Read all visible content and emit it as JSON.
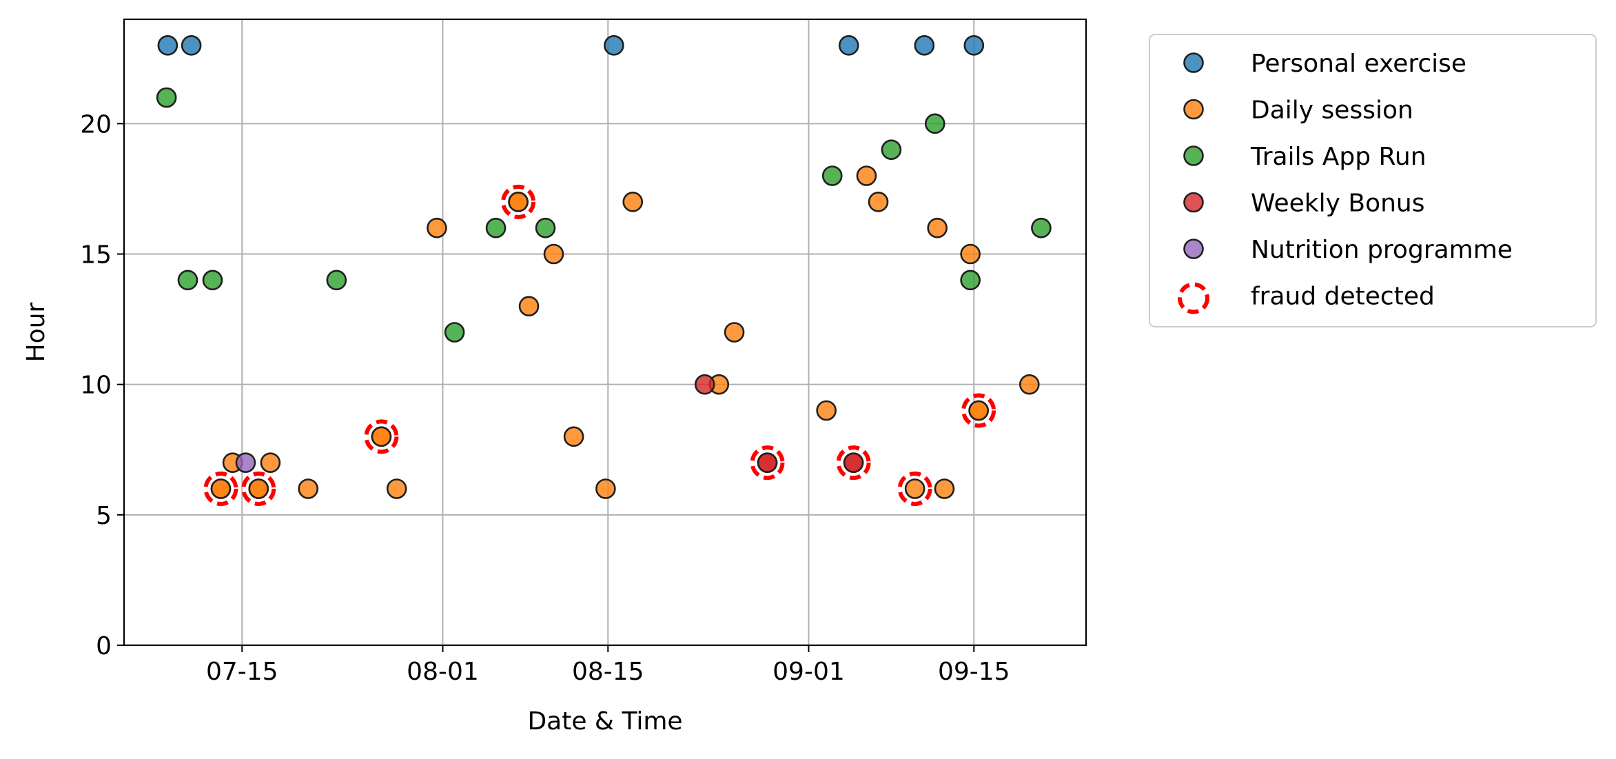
{
  "chart_data": {
    "type": "scatter",
    "title": "",
    "xlabel": "Date & Time",
    "ylabel": "Hour",
    "ylim": [
      0,
      24
    ],
    "xlim": [
      -10.0,
      71.5
    ],
    "x_origin": "07-15",
    "x_unit": "days since 07-15",
    "x_ticks": [
      {
        "value": 0,
        "label": "07-15"
      },
      {
        "value": 17,
        "label": "08-01"
      },
      {
        "value": 31,
        "label": "08-15"
      },
      {
        "value": 48,
        "label": "09-01"
      },
      {
        "value": 62,
        "label": "09-15"
      }
    ],
    "y_ticks": [
      {
        "value": 0,
        "label": "0"
      },
      {
        "value": 5,
        "label": "5"
      },
      {
        "value": 10,
        "label": "10"
      },
      {
        "value": 15,
        "label": "15"
      },
      {
        "value": 20,
        "label": "20"
      }
    ],
    "grid": true,
    "legend_position": "outside-right-top",
    "series": [
      {
        "name": "Personal exercise",
        "color": "#1f77b4",
        "points": [
          [
            -6.3,
            23
          ],
          [
            -4.3,
            23
          ],
          [
            31.5,
            23
          ],
          [
            51.4,
            23
          ],
          [
            57.8,
            23
          ],
          [
            62.0,
            23
          ]
        ]
      },
      {
        "name": "Daily session",
        "color": "#ff7f0e",
        "points": [
          [
            -1.8,
            6
          ],
          [
            -0.8,
            7
          ],
          [
            1.4,
            6
          ],
          [
            2.4,
            7
          ],
          [
            5.6,
            6
          ],
          [
            11.8,
            8
          ],
          [
            13.1,
            6
          ],
          [
            16.5,
            16
          ],
          [
            23.4,
            17
          ],
          [
            24.3,
            13
          ],
          [
            26.4,
            15
          ],
          [
            28.1,
            8
          ],
          [
            30.8,
            6
          ],
          [
            33.1,
            17
          ],
          [
            40.4,
            10
          ],
          [
            41.7,
            12
          ],
          [
            49.5,
            9
          ],
          [
            52.9,
            18
          ],
          [
            53.9,
            17
          ],
          [
            58.9,
            16
          ],
          [
            59.5,
            6
          ],
          [
            61.7,
            15
          ],
          [
            62.4,
            9
          ],
          [
            66.7,
            10
          ]
        ]
      },
      {
        "name": "Trails App Run",
        "color": "#2ca02c",
        "points": [
          [
            -6.4,
            21
          ],
          [
            -4.6,
            14
          ],
          [
            -2.5,
            14
          ],
          [
            8.0,
            14
          ],
          [
            18.0,
            12
          ],
          [
            21.5,
            16
          ],
          [
            25.7,
            16
          ],
          [
            50.0,
            18
          ],
          [
            55.0,
            19
          ],
          [
            58.7,
            20
          ],
          [
            61.7,
            14
          ],
          [
            67.7,
            16
          ]
        ]
      },
      {
        "name": "Weekly Bonus",
        "color": "#d62728",
        "points": [
          [
            39.2,
            10
          ],
          [
            44.5,
            7
          ],
          [
            51.8,
            7
          ]
        ]
      },
      {
        "name": "Nutrition programme",
        "color": "#9467bd",
        "points": [
          [
            0.3,
            7
          ]
        ]
      }
    ],
    "fraud_detected": {
      "name": "fraud detected",
      "color": "#ff0000",
      "points": [
        [
          -1.8,
          6
        ],
        [
          1.4,
          6
        ],
        [
          11.8,
          8
        ],
        [
          23.4,
          17
        ],
        [
          44.5,
          7
        ],
        [
          51.8,
          7
        ],
        [
          57.0,
          6
        ],
        [
          62.4,
          9
        ]
      ]
    },
    "fraud_point_color": "#ff7f0e",
    "fraud_overrides": [
      {
        "x": 44.5,
        "y": 7,
        "color": "#d62728"
      },
      {
        "x": 51.8,
        "y": 7,
        "color": "#d62728"
      }
    ]
  }
}
